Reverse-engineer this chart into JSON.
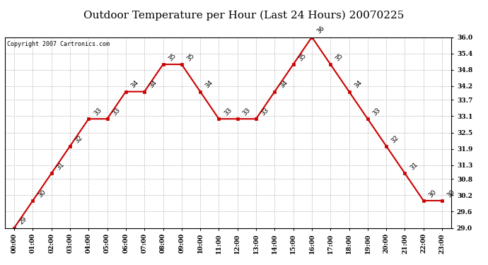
{
  "title": "Outdoor Temperature per Hour (Last 24 Hours) 20070225",
  "copyright_text": "Copyright 2007 Cartronics.com",
  "hours": [
    "00:00",
    "01:00",
    "02:00",
    "03:00",
    "04:00",
    "05:00",
    "06:00",
    "07:00",
    "08:00",
    "09:00",
    "10:00",
    "11:00",
    "12:00",
    "13:00",
    "14:00",
    "15:00",
    "16:00",
    "17:00",
    "18:00",
    "19:00",
    "20:00",
    "21:00",
    "22:00",
    "23:00"
  ],
  "temps": [
    29,
    30,
    31,
    32,
    33,
    33,
    34,
    34,
    35,
    35,
    34,
    33,
    33,
    33,
    34,
    35,
    36,
    35,
    34,
    33,
    32,
    31,
    30,
    30
  ],
  "line_color": "#cc0000",
  "marker_color": "#cc0000",
  "grid_color": "#bbbbbb",
  "bg_color": "#ffffff",
  "ylim_min": 29.0,
  "ylim_max": 36.0,
  "yticks": [
    29.0,
    29.6,
    30.2,
    30.8,
    31.3,
    31.9,
    32.5,
    33.1,
    33.7,
    34.2,
    34.8,
    35.4,
    36.0
  ],
  "title_fontsize": 11,
  "label_fontsize": 6.5,
  "tick_fontsize": 6.5,
  "copyright_fontsize": 6
}
